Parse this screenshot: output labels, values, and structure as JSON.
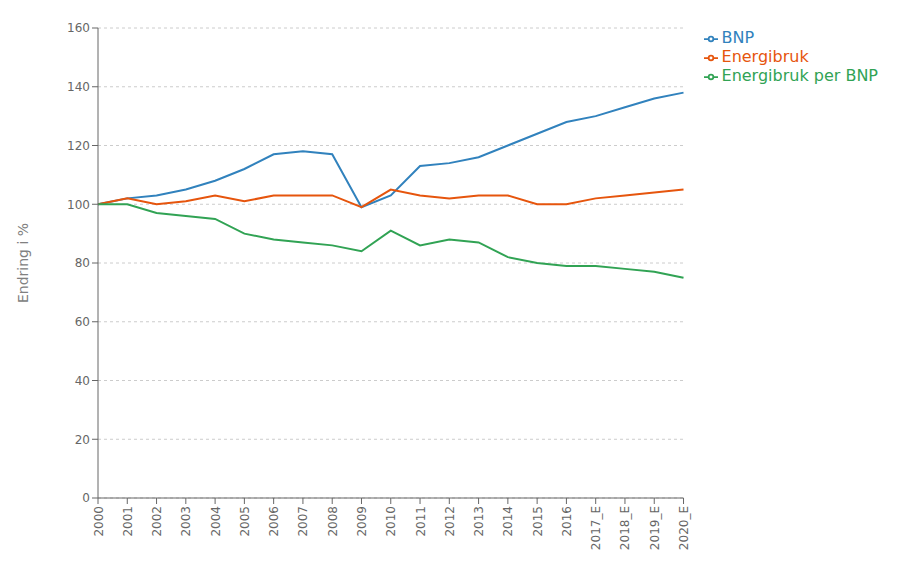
{
  "chart_data": {
    "type": "line",
    "ylabel": "Endring i %",
    "categories": [
      "2000",
      "2001",
      "2002",
      "2003",
      "2004",
      "2005",
      "2006",
      "2007",
      "2008",
      "2009",
      "2010",
      "2011",
      "2012",
      "2013",
      "2014",
      "2015",
      "2016",
      "2017_E",
      "2018_E",
      "2019_E",
      "2020_E"
    ],
    "series": [
      {
        "name": "BNP",
        "color": "#3182bd",
        "values": [
          100,
          102,
          103,
          105,
          108,
          112,
          117,
          118,
          117,
          99,
          103,
          113,
          114,
          116,
          120,
          124,
          128,
          130,
          133,
          136,
          138
        ]
      },
      {
        "name": "Energibruk",
        "color": "#e6550d",
        "values": [
          100,
          102,
          100,
          101,
          103,
          101,
          103,
          103,
          103,
          99,
          105,
          103,
          102,
          103,
          103,
          100,
          100,
          102,
          103,
          104,
          105
        ]
      },
      {
        "name": "Energibruk per BNP",
        "color": "#31a354",
        "values": [
          100,
          100,
          97,
          96,
          95,
          90,
          88,
          87,
          86,
          84,
          91,
          86,
          88,
          87,
          82,
          80,
          79,
          79,
          78,
          77,
          75
        ]
      }
    ],
    "ylim": [
      0,
      160
    ],
    "yticks": [
      0,
      20,
      40,
      60,
      80,
      100,
      120,
      140,
      160
    ],
    "grid": true,
    "legend": "right"
  }
}
